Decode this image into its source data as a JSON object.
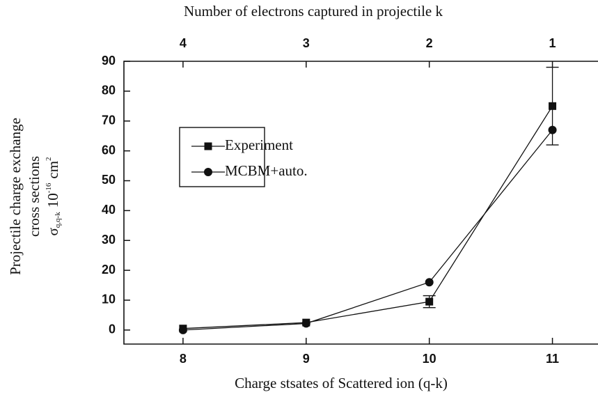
{
  "chart_data": {
    "type": "line",
    "x_label": "Charge stsates of Scattered ion (q-k)",
    "top_label": "Number of electrons captured in projectile k",
    "y_label_lines": [
      "Projectile charge exchange",
      "cross sections"
    ],
    "y_unit": {
      "symbol": "σ",
      "subscript": "q,q-k",
      "factor": "10",
      "exponent": "-16",
      "unit": "cm",
      "unit_exponent": "2"
    },
    "x": [
      8,
      9,
      10,
      11
    ],
    "top_ticks": [
      4,
      3,
      2,
      1
    ],
    "series": [
      {
        "name": "Experiment",
        "color": "#111111",
        "marker": "square",
        "values": [
          0.5,
          2.5,
          9.5,
          75
        ],
        "errors": [
          null,
          null,
          2,
          13
        ]
      },
      {
        "name": "MCBM+auto.",
        "color": "#111111",
        "marker": "circle",
        "values": [
          0,
          2.2,
          16,
          67
        ]
      }
    ],
    "xlim": [
      7.52,
      11.37
    ],
    "xticks": [
      8,
      9,
      10,
      11
    ],
    "ylim": [
      -4.7,
      90
    ],
    "yticks": [
      0,
      10,
      20,
      30,
      40,
      50,
      60,
      70,
      80,
      90
    ],
    "legend": "upper left"
  }
}
